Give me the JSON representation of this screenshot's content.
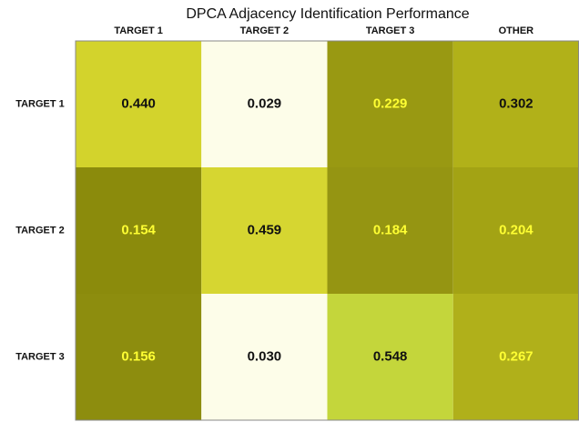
{
  "chart_data": {
    "type": "heatmap",
    "title": "DPCA Adjacency Identification Performance",
    "x_categories": [
      "TARGET 1",
      "TARGET 2",
      "TARGET 3",
      "OTHER"
    ],
    "y_categories": [
      "TARGET 1",
      "TARGET 2",
      "TARGET 3"
    ],
    "values": [
      [
        0.44,
        0.029,
        0.229,
        0.302
      ],
      [
        0.154,
        0.459,
        0.184,
        0.204
      ],
      [
        0.156,
        0.03,
        0.548,
        0.267
      ]
    ],
    "value_labels": [
      [
        "0.440",
        "0.029",
        "0.229",
        "0.302"
      ],
      [
        "0.154",
        "0.459",
        "0.184",
        "0.204"
      ],
      [
        "0.156",
        "0.030",
        "0.548",
        "0.267"
      ]
    ],
    "cell_colors": [
      [
        "#d3d32c",
        "#fdfde9",
        "#999912",
        "#b1b119"
      ],
      [
        "#8b8b0c",
        "#d6d631",
        "#959512",
        "#a3a314"
      ],
      [
        "#8d8d0e",
        "#fdfde9",
        "#c4d63b",
        "#b0b01a"
      ]
    ],
    "label_colors": [
      [
        "#111111",
        "#111111",
        "#ffff33",
        "#111111"
      ],
      [
        "#ffff33",
        "#111111",
        "#ffff33",
        "#ffff33"
      ],
      [
        "#ffff33",
        "#111111",
        "#111111",
        "#ffff33"
      ]
    ]
  }
}
